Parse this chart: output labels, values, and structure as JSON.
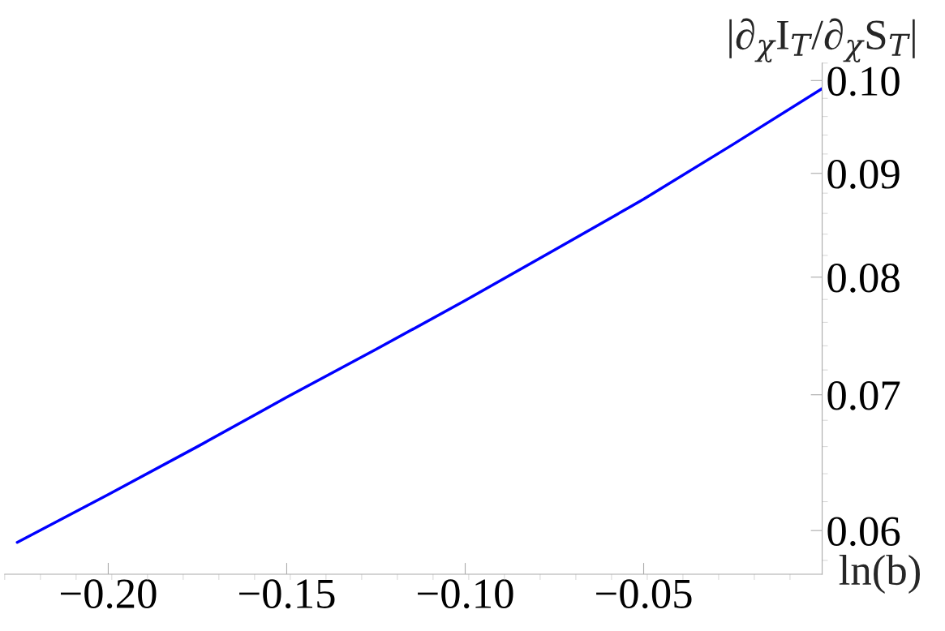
{
  "chart_data": {
    "type": "line",
    "xlabel": "ln(b)",
    "ylabel": "|∂$_{χ}$I$_{T}$/∂$_{χ}$S$_{T}$|",
    "x": [
      -0.2255,
      -0.2,
      -0.175,
      -0.15,
      -0.125,
      -0.1,
      -0.075,
      -0.05,
      -0.025,
      0.0
    ],
    "series": [
      {
        "color": "#0000ff",
        "values": [
          0.0592,
          0.0625,
          0.066,
          0.0698,
          0.0737,
          0.0779,
          0.0825,
          0.0874,
          0.093,
          0.0991
        ]
      }
    ],
    "log": "y",
    "xlim": [
      -0.229,
      0.0
    ],
    "ylim": [
      0.0571,
      0.102
    ],
    "xticks": [
      {
        "value": -0.2,
        "label": "−0.20"
      },
      {
        "value": -0.15,
        "label": "−0.15"
      },
      {
        "value": -0.1,
        "label": "−0.10"
      },
      {
        "value": -0.05,
        "label": "−0.05"
      }
    ],
    "yticks": [
      {
        "value": 0.06,
        "label": "0.06"
      },
      {
        "value": 0.07,
        "label": "0.07"
      },
      {
        "value": 0.08,
        "label": "0.08"
      },
      {
        "value": 0.09,
        "label": "0.09"
      },
      {
        "value": 0.1,
        "label": "0.10"
      }
    ],
    "grid": false,
    "marker": "none",
    "line_style": "solid"
  }
}
